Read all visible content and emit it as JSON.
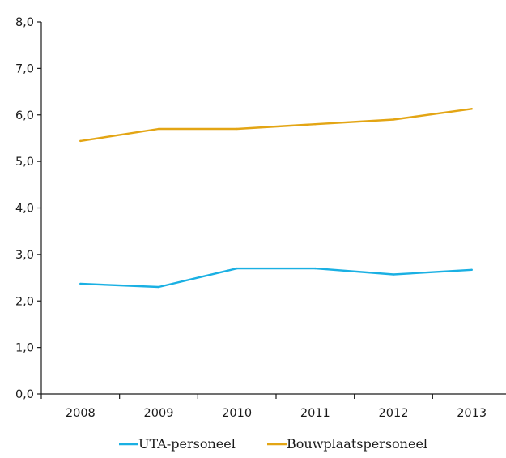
{
  "chart_data": {
    "type": "line",
    "title": "",
    "xlabel": "",
    "ylabel": "",
    "categories": [
      "2008",
      "2009",
      "2010",
      "2011",
      "2012",
      "2013"
    ],
    "ylim": [
      0,
      8
    ],
    "yticks": [
      "0,0",
      "1,0",
      "2,0",
      "3,0",
      "4,0",
      "5,0",
      "6,0",
      "7,0",
      "8,0"
    ],
    "grid": false,
    "legend_position": "bottom",
    "series": [
      {
        "name": "UTA-personeel",
        "color": "#1ab0e3",
        "values": [
          2.37,
          2.3,
          2.7,
          2.7,
          2.57,
          2.67
        ]
      },
      {
        "name": "Bouwplaatspersoneel",
        "color": "#e3a514",
        "values": [
          5.44,
          5.7,
          5.7,
          5.8,
          5.9,
          6.13
        ]
      }
    ]
  }
}
